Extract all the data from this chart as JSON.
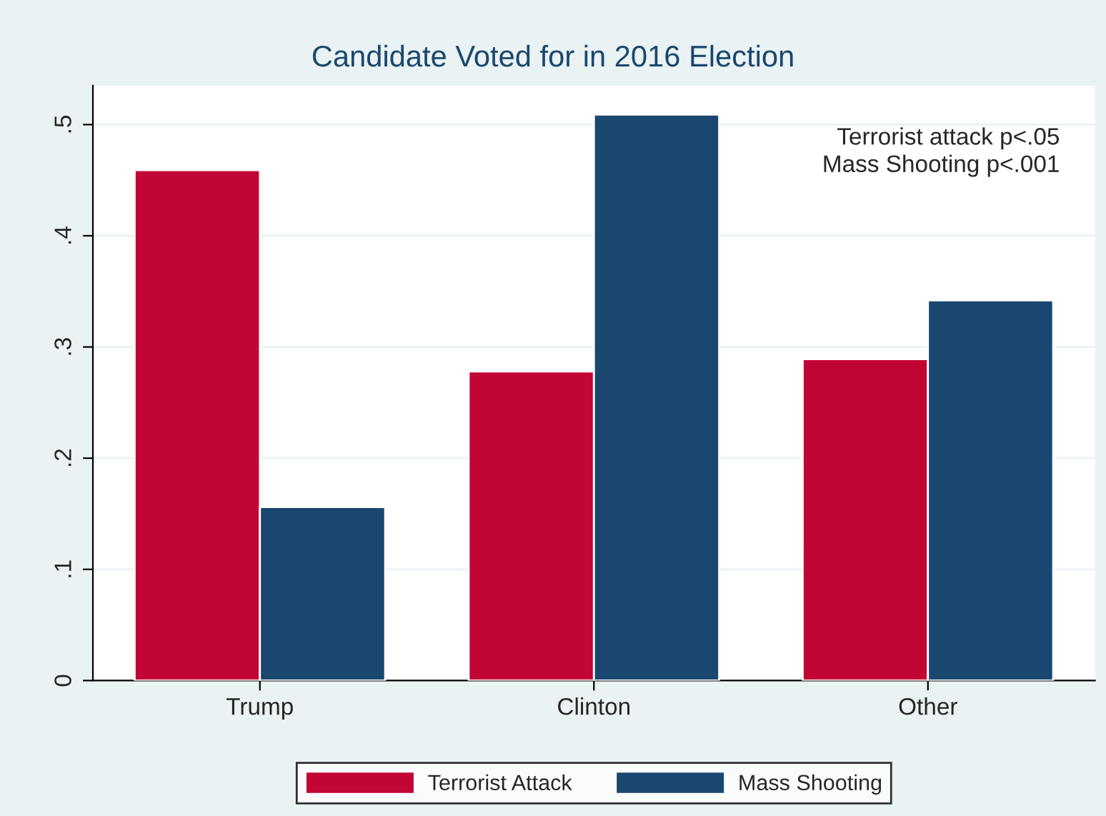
{
  "chart_data": {
    "type": "bar",
    "title": "Candidate Voted for in 2016 Election",
    "categories": [
      "Trump",
      "Clinton",
      "Other"
    ],
    "series": [
      {
        "name": "Terrorist Attack",
        "color": "#c10534",
        "values": [
          0.459,
          0.278,
          0.289
        ]
      },
      {
        "name": "Mass Shooting",
        "color": "#1a476f",
        "values": [
          0.156,
          0.509,
          0.342
        ]
      }
    ],
    "ylim": [
      0,
      0.535
    ],
    "yticks": [
      0,
      {
        "value": 0.1,
        "label": ".1"
      },
      {
        "value": 0.2,
        "label": ".2"
      },
      {
        "value": 0.3,
        "label": ".3"
      },
      {
        "value": 0.4,
        "label": ".4"
      },
      {
        "value": 0.5,
        "label": ".5"
      }
    ],
    "annotations": [
      "Terrorist attack p<.05",
      "Mass Shooting p<.001"
    ],
    "grid": "y",
    "legend": "bottom"
  }
}
